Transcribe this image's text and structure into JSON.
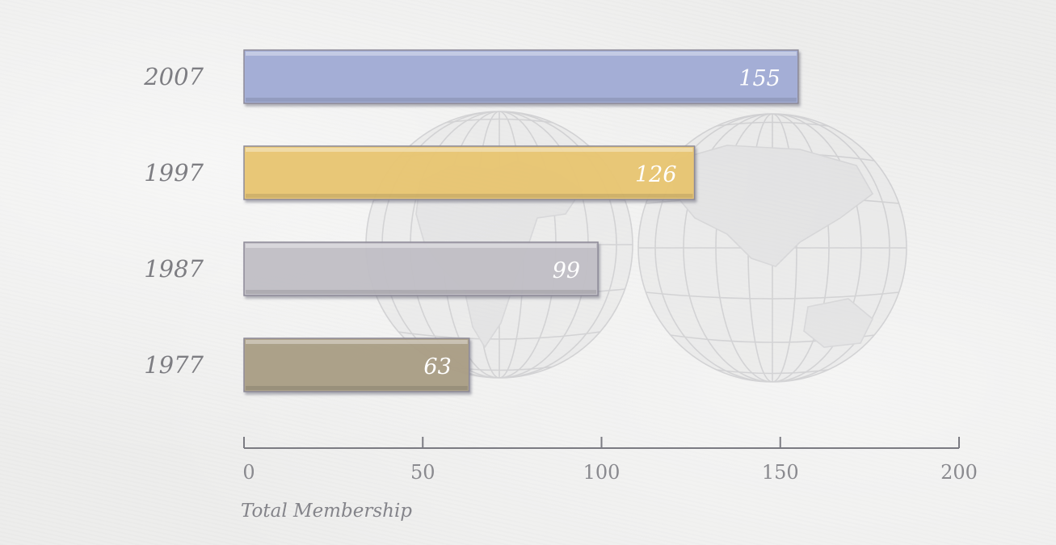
{
  "chart_data": {
    "type": "bar",
    "orientation": "horizontal",
    "categories": [
      "2007",
      "1997",
      "1987",
      "1977"
    ],
    "values": [
      155,
      126,
      99,
      63
    ],
    "bar_colors": [
      "#a3aed8",
      "#ecc872",
      "#c3c1c8",
      "#ab9f85"
    ],
    "xlabel": "Total Membership",
    "ylabel": "",
    "xlim": [
      0,
      200
    ],
    "xticks": [
      0,
      50,
      100,
      150,
      200
    ],
    "tick_labels": [
      "0",
      "50",
      "100",
      "150",
      "200"
    ],
    "value_labels": [
      "155",
      "126",
      "99",
      "63"
    ],
    "grid": false,
    "background_image": "world-globes-icon"
  }
}
